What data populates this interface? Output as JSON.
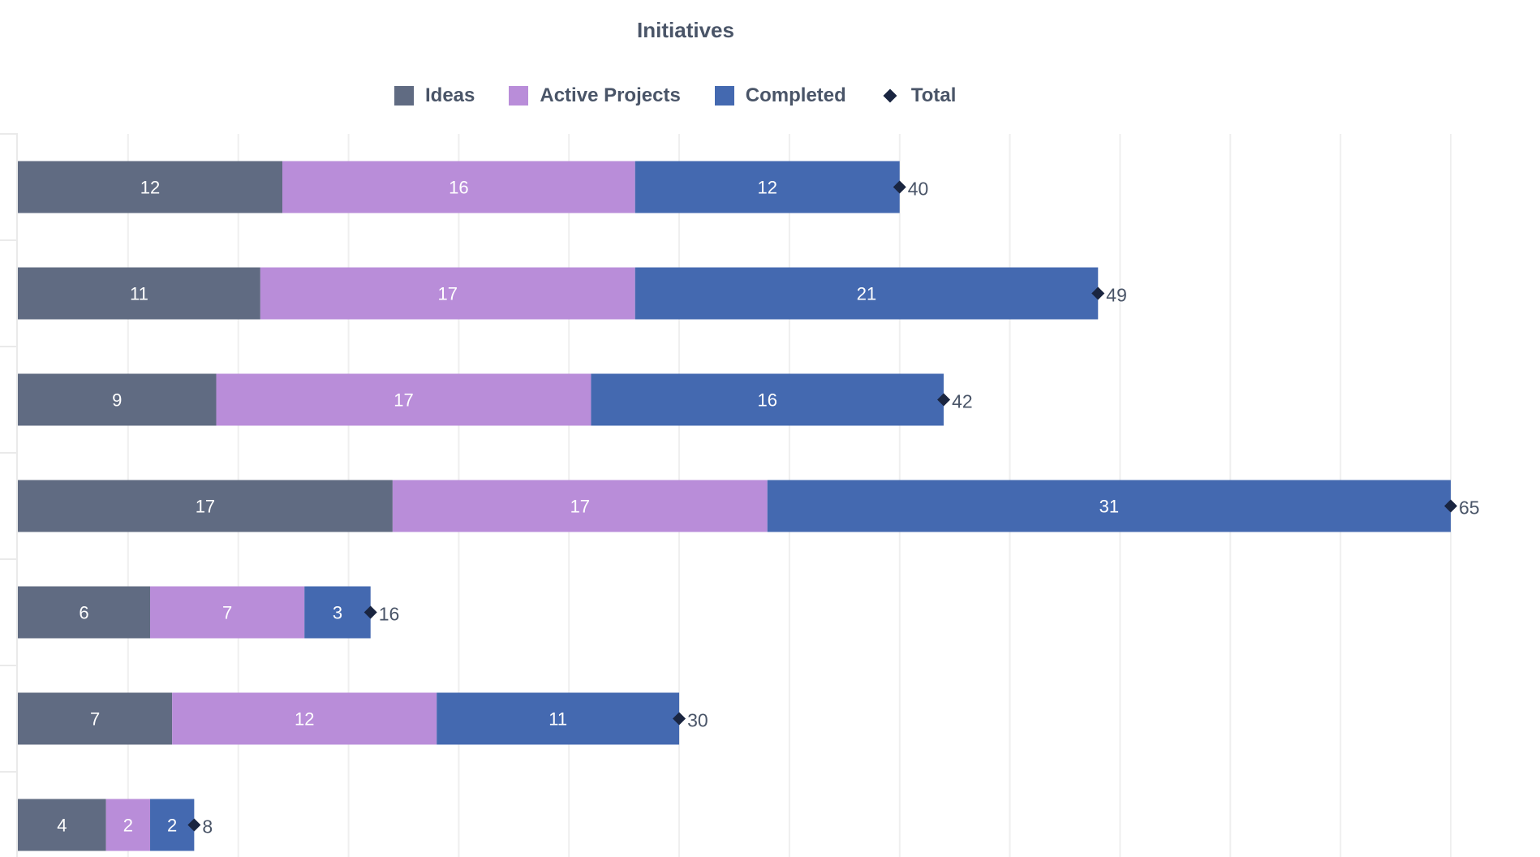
{
  "chart_data": {
    "type": "bar",
    "orientation": "horizontal",
    "stacked": true,
    "title": "Initiatives",
    "categories": [
      "",
      "",
      "",
      "",
      "",
      "",
      ""
    ],
    "series": [
      {
        "name": "Ideas",
        "color": "#606b82",
        "values": [
          12,
          11,
          9,
          17,
          6,
          7,
          4
        ]
      },
      {
        "name": "Active Projects",
        "color": "#b98dd9",
        "values": [
          16,
          17,
          17,
          17,
          7,
          12,
          2
        ]
      },
      {
        "name": "Completed",
        "color": "#4469b0",
        "values": [
          12,
          21,
          16,
          31,
          3,
          11,
          2
        ]
      }
    ],
    "total": {
      "name": "Total",
      "color": "#1a2540",
      "marker": "diamond",
      "values": [
        40,
        49,
        42,
        65,
        16,
        30,
        8
      ]
    },
    "xlim": [
      0,
      65
    ],
    "grid_step": 5,
    "grid": true,
    "legend_position": "top-center"
  }
}
